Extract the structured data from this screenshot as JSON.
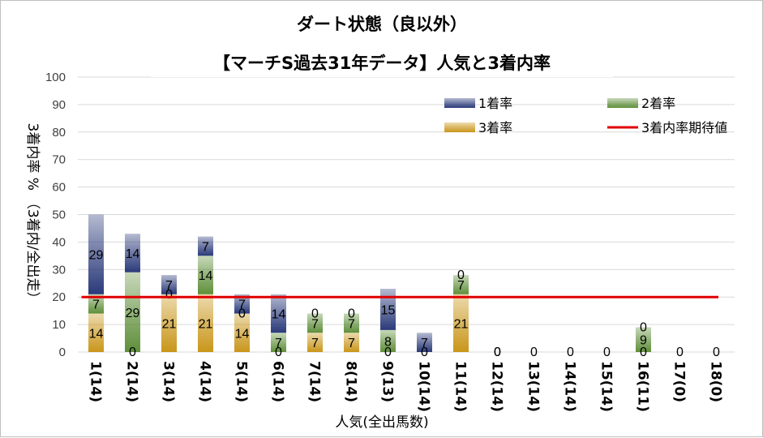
{
  "chart_data": {
    "type": "bar",
    "stacked": true,
    "title_line1": "ダート状態（良以外）",
    "title_line2": "【マーチS過去31年データ】人気と3着内率",
    "xlabel": "人気(全出馬数)",
    "ylabel_main": "3着内率 %",
    "ylabel_sub": "（3着内/全出走）",
    "ylim": [
      0,
      100
    ],
    "yticks": [
      "0",
      "10",
      "20",
      "30",
      "40",
      "50",
      "60",
      "70",
      "80",
      "90",
      "100"
    ],
    "categories": [
      "1(14)",
      "2(14)",
      "3(14)",
      "4(14)",
      "5(14)",
      "6(14)",
      "7(14)",
      "8(14)",
      "9(13)",
      "10(14)",
      "11(14)",
      "12(14)",
      "13(14)",
      "14(14)",
      "15(14)",
      "16(11)",
      "17(0)",
      "18(0)"
    ],
    "series": [
      {
        "name": "3着率",
        "color": "#c9961a",
        "values": [
          14,
          0,
          21,
          21,
          14,
          0,
          7,
          7,
          0,
          0,
          21,
          0,
          0,
          0,
          0,
          0,
          0,
          0
        ],
        "labels": [
          "14",
          "0",
          "21",
          "21",
          "14",
          "0",
          "7",
          "7",
          "0",
          "0",
          "21",
          "0",
          "0",
          "0",
          "0",
          "0",
          "0",
          "0"
        ]
      },
      {
        "name": "2着率",
        "color": "#5f8f3a",
        "values": [
          7,
          29,
          0,
          14,
          0,
          7,
          7,
          7,
          8,
          0,
          7,
          0,
          0,
          0,
          0,
          9,
          0,
          0
        ],
        "labels": [
          "7",
          "29",
          "0",
          "14",
          "0",
          "7",
          "7",
          "7",
          "8",
          "",
          "7",
          "",
          "",
          "",
          "",
          "9",
          "",
          ""
        ]
      },
      {
        "name": "1着率",
        "color": "#2a3a7a",
        "values": [
          29,
          14,
          7,
          7,
          7,
          14,
          0,
          0,
          15,
          7,
          0,
          0,
          0,
          0,
          0,
          0,
          0,
          0
        ],
        "labels": [
          "29",
          "14",
          "7",
          "7",
          "7",
          "14",
          "0",
          "0",
          "15",
          "7",
          "0",
          "0",
          "",
          "",
          "",
          "0",
          "",
          ""
        ]
      }
    ],
    "expected_line": {
      "name": "3着内率期待値",
      "value": 20,
      "color": "#e00000"
    },
    "legend": [
      "1着率",
      "2着率",
      "3着率",
      "3着内率期待値"
    ],
    "legend_position": "top-right",
    "grid": true
  }
}
